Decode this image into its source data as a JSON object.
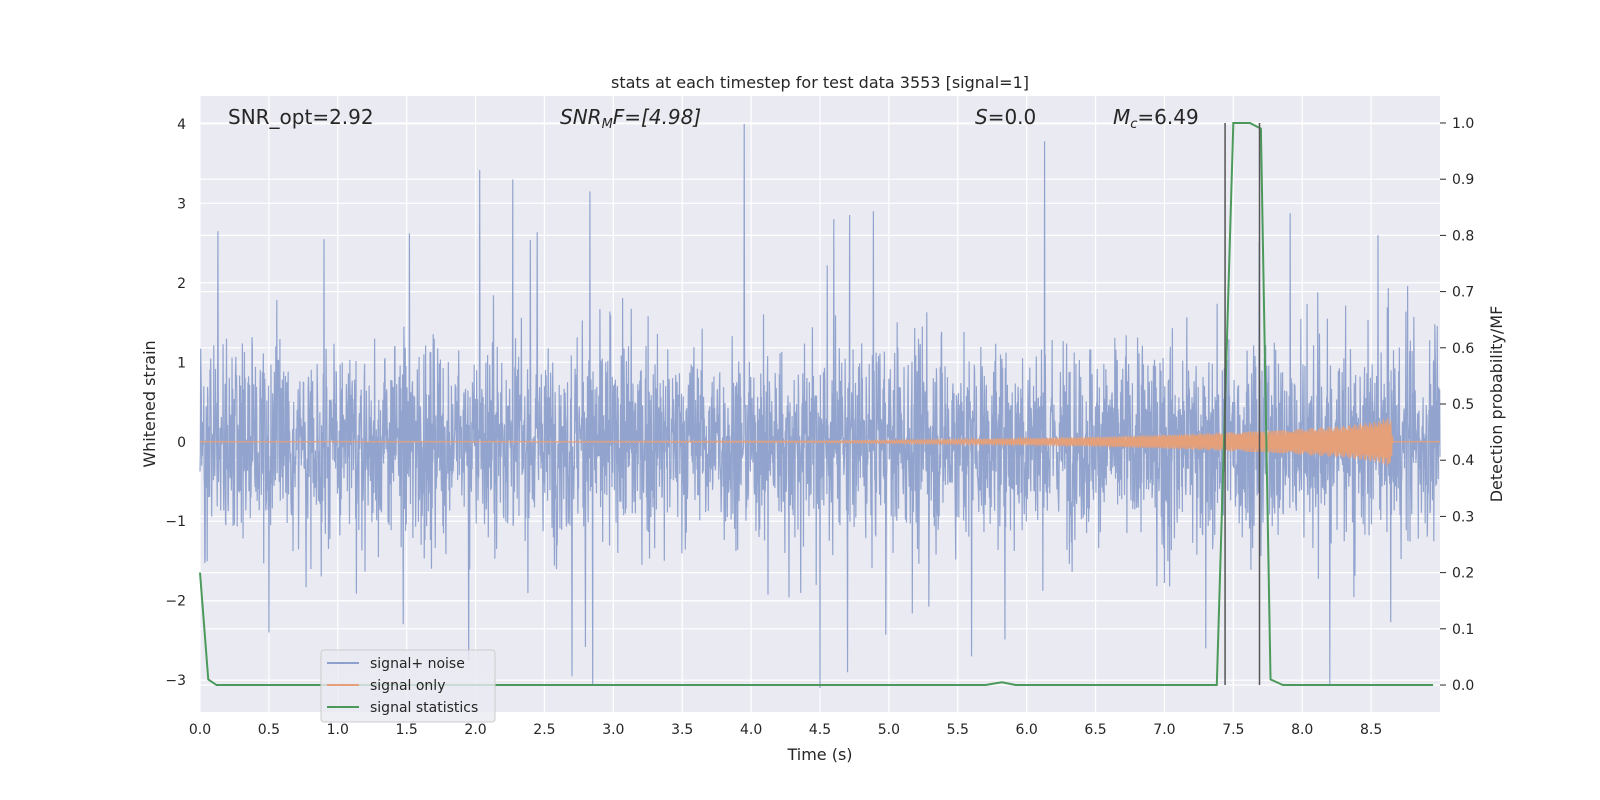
{
  "chart_data": {
    "type": "line",
    "title": "stats at each timestep for test data 3553 [signal=1]",
    "xlabel": "Time (s)",
    "ylabel": "Whitened strain",
    "y2label": "Detection probability/MF",
    "xlim": [
      0,
      9.0
    ],
    "ylim": [
      -3.4,
      4.35
    ],
    "y2lim": [
      -0.048,
      1.048
    ],
    "x_ticks": [
      "0.0",
      "0.5",
      "1.0",
      "1.5",
      "2.0",
      "2.5",
      "3.0",
      "3.5",
      "4.0",
      "4.5",
      "5.0",
      "5.5",
      "6.0",
      "6.5",
      "7.0",
      "7.5",
      "8.0",
      "8.5"
    ],
    "y_ticks": [
      "−3",
      "−2",
      "−1",
      "0",
      "1",
      "2",
      "3",
      "4"
    ],
    "y2_ticks": [
      "0.0",
      "0.1",
      "0.2",
      "0.3",
      "0.4",
      "0.5",
      "0.6",
      "0.7",
      "0.8",
      "0.9",
      "1.0"
    ],
    "annotations": {
      "snr_opt": "SNR_opt=2.92",
      "snr_mf_base": "SNR",
      "snr_mf_sub": "M",
      "snr_mf_rest": "F=[4.98]",
      "s_var": "S",
      "s_rest": "=0.0",
      "mc_base": "M",
      "mc_sub": "c",
      "mc_rest": "=6.49"
    },
    "legend": {
      "placement": "lower-left",
      "entries": [
        "signal+ noise",
        "signal only",
        "signal statistics"
      ]
    },
    "series": [
      {
        "name": "signal+ noise",
        "color": "#8da0cb",
        "description_axis": "left",
        "sampling": "dense noise, approx ±1.2 core with peaks to ±3",
        "peaks": [
          [
            0.13,
            2.65
          ],
          [
            0.9,
            2.55
          ],
          [
            1.52,
            2.62
          ],
          [
            2.03,
            3.42
          ],
          [
            2.27,
            3.3
          ],
          [
            2.83,
            3.15
          ],
          [
            3.95,
            4.0
          ],
          [
            4.5,
            2.95
          ],
          [
            4.6,
            2.8
          ],
          [
            6.13,
            3.78
          ],
          [
            8.55,
            2.6
          ],
          [
            2.7,
            -2.95
          ],
          [
            2.85,
            -3.05
          ],
          [
            4.5,
            -3.1
          ],
          [
            4.7,
            -2.9
          ],
          [
            5.6,
            -2.7
          ],
          [
            8.2,
            -3.05
          ],
          [
            7.3,
            -2.6
          ],
          [
            0.5,
            -2.4
          ],
          [
            1.95,
            -2.75
          ]
        ]
      },
      {
        "name": "signal only",
        "color": "#e5a07a",
        "description_axis": "left",
        "envelope": [
          [
            0,
            0.0
          ],
          [
            4.5,
            0.01
          ],
          [
            5.5,
            0.03
          ],
          [
            6.5,
            0.06
          ],
          [
            7.2,
            0.1
          ],
          [
            7.8,
            0.14
          ],
          [
            8.3,
            0.2
          ],
          [
            8.55,
            0.26
          ],
          [
            8.64,
            0.32
          ],
          [
            8.66,
            0.0
          ],
          [
            9.0,
            0.0
          ]
        ]
      },
      {
        "name": "signal statistics",
        "color": "#4c9a5b",
        "description_axis": "right",
        "x": [
          0.0,
          0.06,
          0.12,
          5.7,
          5.82,
          5.92,
          7.38,
          7.44,
          7.5,
          7.62,
          7.7,
          7.77,
          7.86,
          8.95
        ],
        "y": [
          0.2,
          0.01,
          0.0,
          0.0,
          0.005,
          0.0,
          0.0,
          0.5,
          1.0,
          1.0,
          0.99,
          0.01,
          0.0,
          0.0
        ]
      }
    ],
    "markers": {
      "color": "#555555",
      "x": [
        7.44,
        7.69
      ],
      "y_top": 1.0,
      "y_bottom": 0.0
    }
  }
}
